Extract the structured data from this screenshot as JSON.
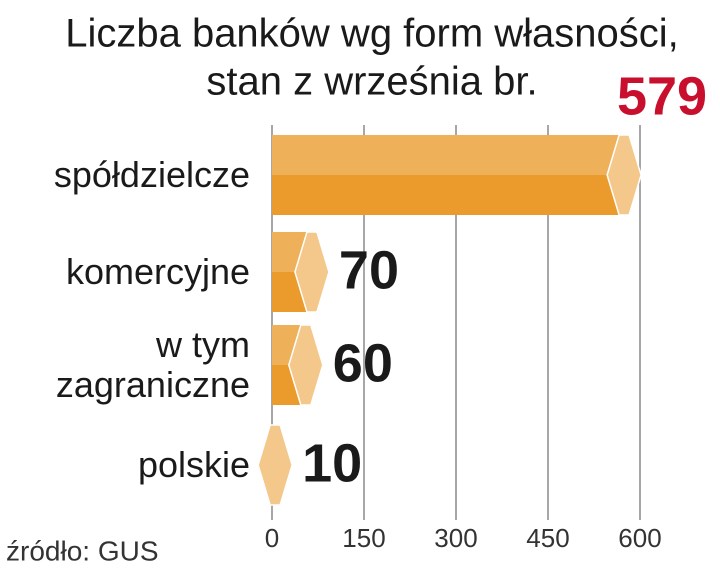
{
  "chart_data": {
    "type": "bar",
    "orientation": "horizontal",
    "title": "Liczba banków wg form własności,",
    "subtitle": "stan z września br.",
    "categories": [
      "spółdzielcze",
      "komercyjne",
      "w tym zagraniczne",
      "polskie"
    ],
    "values": [
      579,
      70,
      60,
      10
    ],
    "color": "#eb9a2c",
    "value_label_colors": [
      "#c8102e",
      "#1a1a1a",
      "#1a1a1a",
      "#1a1a1a"
    ],
    "xlim": [
      0,
      600
    ],
    "xticks": [
      0,
      150,
      300,
      450,
      600
    ],
    "grid": true,
    "source": "źródło: GUS"
  }
}
